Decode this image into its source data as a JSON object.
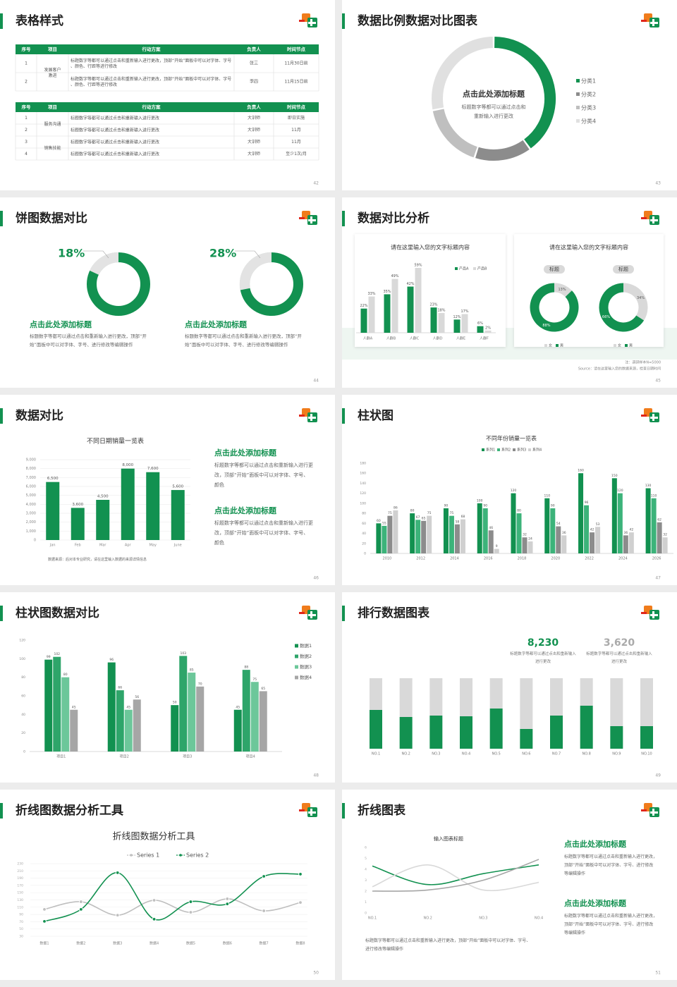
{
  "slides": [
    {
      "title": "表格样式",
      "page": "42",
      "tables": [
        {
          "headers": [
            "序号",
            "项目",
            "行动方案",
            "负责人",
            "时间节点"
          ],
          "groups": [
            {
              "label": "发展客户激进",
              "rows": [
                [
                  "1",
                  "标题数字等都可以通过点击和重新输入进行更改，顶部“开始”面板中可以对字体、字号、颜色、行距等进行修改",
                  "张三",
                  "11月30日前"
                ],
                [
                  "2",
                  "标题数字等都可以通过点击和重新输入进行更改，顶部“开始”面板中可以对字体、字号、颜色、行距等进行修改",
                  "李四",
                  "11月15日前"
                ]
              ]
            }
          ]
        },
        {
          "headers": [
            "序号",
            "项目",
            "行动方案",
            "负责人",
            "时间节点"
          ],
          "groups": [
            {
              "label": "服务沟通",
              "rows": [
                [
                  "1",
                  "标题数字等都可以通过点击和重新输入进行更改",
                  "大训师",
                  "即日实施"
                ],
                [
                  "2",
                  "标题数字等都可以通过点击和重新输入进行更改",
                  "大训师",
                  "11月"
                ]
              ]
            },
            {
              "label": "销售技能",
              "rows": [
                [
                  "3",
                  "标题数字等都可以通过点击和重新输入进行更改",
                  "大训师",
                  "11月"
                ],
                [
                  "4",
                  "标题数字等都可以通过点击和重新输入进行更改",
                  "大训师",
                  "至少1次/月"
                ]
              ]
            }
          ]
        }
      ]
    },
    {
      "title": "数据比例数据对比图表",
      "page": "43",
      "chart": {
        "type": "donut",
        "title": "点击此处添加标题",
        "subtitle": "标题数字等都可以通过点击和重新输入进行更改",
        "categories": [
          "分类1",
          "分类2",
          "分类3",
          "分类4"
        ],
        "values": [
          40,
          15,
          17,
          28
        ],
        "colors": [
          "#129150",
          "#8c8c8c",
          "#bfbfbf",
          "#e0e0e0"
        ]
      }
    },
    {
      "title": "饼图数据对比",
      "page": "44",
      "colors": [
        "#129150",
        "#e3e3e3"
      ],
      "items": [
        {
          "value": 18,
          "value_label": "18%",
          "heading": "点击此处添加标题",
          "body": "标题数字等都可以通过点击和重新输入进行更改，顶部“开始”面板中可以对字体、字号、进行修改等编辑操作"
        },
        {
          "value": 28,
          "value_label": "28%",
          "heading": "点击此处添加标题",
          "body": "标题数字等都可以通过点击和重新输入进行更改，顶部“开始”面板中可以对字体、字号、进行修改等编辑操作"
        }
      ]
    },
    {
      "title": "数据对比分析",
      "page": "45",
      "bar_chart": {
        "type": "grouped_bar",
        "title": "请在这里输入您的文字标题内容",
        "categories": [
          "人群A",
          "人群B",
          "人群C",
          "人群D",
          "人群E",
          "人群F"
        ],
        "series": [
          {
            "name": "产品A",
            "color": "#129150",
            "values": [
              22,
              35,
              42,
              23,
              12,
              6
            ],
            "value_labels": [
              "22%",
              "35%",
              "42%",
              "23%",
              "12%",
              "6%"
            ]
          },
          {
            "name": "产品B",
            "color": "#d9d9d9",
            "values": [
              33,
              49,
              59,
              18,
              17,
              2
            ],
            "value_labels": [
              "33%",
              "49%",
              "59%",
              "18%",
              "17%",
              "2%"
            ]
          }
        ]
      },
      "donut_panel": {
        "title": "请在这里输入您的文字标题内容",
        "colors": [
          "#d9d9d9",
          "#129150"
        ],
        "charts": [
          {
            "label": "标题",
            "values": [
              13,
              88
            ],
            "value_labels": [
              "13%",
              "88%"
            ],
            "legend": [
              "女",
              "男"
            ]
          },
          {
            "label": "标题",
            "values": [
              34,
              66
            ],
            "value_labels": [
              "34%",
              "66%"
            ],
            "legend": [
              "女",
              "男"
            ]
          }
        ]
      },
      "note": "注：调研样本N=5000",
      "source": "Source：请在这里输入您的数据来源，检查日期时间"
    },
    {
      "title": "数据对比",
      "page": "46",
      "chart": {
        "type": "bar",
        "title": "不同日期销量一览表",
        "categories": [
          "Jan",
          "Feb",
          "Mar",
          "Apr",
          "May",
          "June"
        ],
        "values": [
          6500,
          3600,
          4500,
          8000,
          7600,
          5600
        ],
        "value_labels": [
          "6,500",
          "3,600",
          "4,500",
          "8,000",
          "7,600",
          "5,600"
        ],
        "color": "#129150",
        "ylim": [
          0,
          9000
        ],
        "yticks": [
          0,
          {
            "value": 1000,
            "label": "1,000"
          },
          {
            "value": 2000,
            "label": "2,000"
          },
          {
            "value": 3000,
            "label": "3,000"
          },
          {
            "value": 4000,
            "label": "4,000"
          },
          {
            "value": 5000,
            "label": "5,000"
          },
          {
            "value": 6000,
            "label": "6,000"
          },
          {
            "value": 7000,
            "label": "7,000"
          },
          {
            "value": 8000,
            "label": "8,000"
          },
          {
            "value": 9000,
            "label": "9,000"
          }
        ],
        "grid": true,
        "source": "数据来源：后对本专业研究，请在这里输入数据的来源详情信息"
      },
      "texts": [
        {
          "heading": "点击此处添加标题",
          "body": "标题数字等都可以通过点击和重新输入进行更改，顶部“开始”面板中可以对字体、字号、颜色"
        },
        {
          "heading": "点击此处添加标题",
          "body": "标题数字等都可以通过点击和重新输入进行更改，顶部“开始”面板中可以对字体、字号、颜色"
        }
      ]
    },
    {
      "title": "柱状图",
      "page": "47",
      "chart": {
        "type": "grouped_bar",
        "title": "不同年份销量一览表",
        "categories": [
          "2010",
          "2012",
          "2014",
          "2016",
          "2018",
          "2020",
          "2022",
          "2024",
          "2026"
        ],
        "series": [
          {
            "name": "系列1",
            "color": "#129150",
            "values": [
              60,
              80,
              90,
              100,
              120,
              110,
              160,
              150,
              130
            ]
          },
          {
            "name": "系列2",
            "color": "#3cb37a",
            "values": [
              55,
              67,
              75,
              90,
              80,
              90,
              96,
              120,
              110
            ]
          },
          {
            "name": "系列3",
            "color": "#8c8c8c",
            "values": [
              75,
              65,
              58,
              46,
              32,
              54,
              42,
              36,
              62
            ]
          },
          {
            "name": "系列4",
            "color": "#d0d0d0",
            "values": [
              86,
              75,
              68,
              9,
              24,
              36,
              53,
              42,
              32
            ]
          }
        ],
        "ylim": [
          0,
          180
        ],
        "yticks": [
          0,
          20,
          40,
          60,
          80,
          100,
          120,
          140,
          160,
          180
        ],
        "grid": false
      }
    },
    {
      "title": "柱状图数据对比",
      "page": "48",
      "chart": {
        "type": "grouped_bar",
        "categories": [
          "项目1",
          "项目2",
          "项目3",
          "项目4"
        ],
        "series": [
          {
            "name": "数据1",
            "color": "#129150",
            "values": [
              99,
              96,
              50,
              45
            ]
          },
          {
            "name": "数据2",
            "color": "#2ea56a",
            "values": [
              102,
              66,
              103,
              88
            ]
          },
          {
            "name": "数据3",
            "color": "#6cc79a",
            "values": [
              80,
              45,
              85,
              75
            ]
          },
          {
            "name": "数据4",
            "color": "#a6a6a6",
            "values": [
              45,
              56,
              70,
              65
            ]
          }
        ],
        "ylim": [
          0,
          120
        ],
        "yticks": [
          0,
          20,
          40,
          60,
          80,
          100,
          120
        ],
        "grid": false
      }
    },
    {
      "title": "排行数据图表",
      "page": "49",
      "stats": [
        {
          "value": "8,230",
          "color": "#129150",
          "caption": "标题数字等都可以通过点击和重新输入进行更改"
        },
        {
          "value": "3,620",
          "color": "#aaaaaa",
          "caption": "标题数字等都可以通过点击和重新输入进行更改"
        }
      ],
      "chart": {
        "type": "stacked_bar",
        "categories": [
          "NO.1",
          "NO.2",
          "NO.3",
          "NO.4",
          "NO.5",
          "NO.6",
          "NO.7",
          "NO.8",
          "NO.9",
          "NO.10"
        ],
        "series": [
          {
            "color": "#129150",
            "values": [
              55,
              45,
              47,
              46,
              57,
              28,
              47,
              61,
              32,
              32
            ]
          },
          {
            "color": "#d9d9d9",
            "values": [
              45,
              55,
              53,
              54,
              43,
              72,
              53,
              39,
              68,
              68
            ]
          }
        ]
      }
    },
    {
      "title": "折线图数据分析工具",
      "page": "50",
      "chart": {
        "type": "line",
        "title": "折线图数据分析工具",
        "categories": [
          "数据1",
          "数据2",
          "数据3",
          "数据4",
          "数据5",
          "数据6",
          "数据7",
          "数据8"
        ],
        "series": [
          {
            "name": "Series 1",
            "color": "#bfbfbf",
            "values": [
              104,
              125,
              88,
              129,
              96,
              133,
              100,
              123
            ]
          },
          {
            "name": "Series 2",
            "color": "#129150",
            "values": [
              71,
              104,
              205,
              77,
              125,
              119,
              195,
              201
            ]
          }
        ],
        "ylim": [
          30,
          230
        ],
        "yticks": [
          30,
          50,
          70,
          90,
          110,
          130,
          150,
          170,
          190,
          210,
          230
        ],
        "grid": true,
        "smooth": true,
        "markers": true
      }
    },
    {
      "title": "折线图表",
      "page": "51",
      "chart": {
        "type": "line",
        "title": "输入图表标题",
        "categories": [
          "NO.1",
          "NO.2",
          "NO.3",
          "NO.4"
        ],
        "series": [
          {
            "color": "#129150",
            "values": [
              4.3,
              2.6,
              3.6,
              4.4
            ]
          },
          {
            "color": "#d9d9d9",
            "values": [
              2.4,
              4.4,
              2.1,
              2.8
            ]
          },
          {
            "color": "#a6a6a6",
            "values": [
              2,
              2.1,
              3,
              4.9
            ]
          }
        ],
        "ylim": [
          0,
          6
        ],
        "yticks": [
          0,
          1,
          2,
          3,
          4,
          5,
          6
        ],
        "grid": false,
        "smooth": true,
        "markers": false
      },
      "texts": [
        {
          "heading": "点击此处添加标题",
          "body": "标题数字等都可以通过点击和重新输入进行更改，顶部“开始”面板中可以对字体、字号、进行修改等编辑操作"
        },
        {
          "heading": "点击此处添加标题",
          "body": "标题数字等都可以通过点击和重新输入进行更改，顶部“开始”面板中可以对字体、字号、进行修改等编辑操作"
        }
      ],
      "footer": "标题数字等都可以通过点击和重新输入进行更改，顶部“开始”面板中可以对字体、字号、进行修改等编辑操作"
    }
  ]
}
